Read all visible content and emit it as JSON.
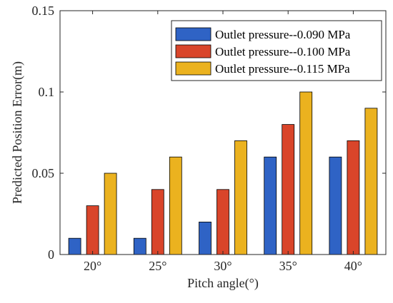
{
  "chart_data": {
    "type": "bar",
    "categories": [
      "20°",
      "25°",
      "30°",
      "35°",
      "40°"
    ],
    "series": [
      {
        "name": "Outlet pressure--0.090 MPa",
        "values": [
          0.01,
          0.01,
          0.02,
          0.06,
          0.06
        ],
        "color": "#2F63C5"
      },
      {
        "name": "Outlet pressure--0.100 MPa",
        "values": [
          0.03,
          0.04,
          0.04,
          0.08,
          0.07
        ],
        "color": "#D9452A"
      },
      {
        "name": "Outlet pressure--0.115 MPa",
        "values": [
          0.05,
          0.06,
          0.07,
          0.1,
          0.09
        ],
        "color": "#EBB21F"
      }
    ],
    "xlabel": "Pitch angle(°)",
    "ylabel": "Predicted Position Error(m)",
    "ylim": [
      0,
      0.15
    ],
    "yticks": [
      0,
      0.05,
      0.1,
      0.15
    ],
    "ytick_labels": [
      "0",
      "0.05",
      "0.1",
      "0.15"
    ],
    "grid": false,
    "legend_position": "top-right"
  }
}
